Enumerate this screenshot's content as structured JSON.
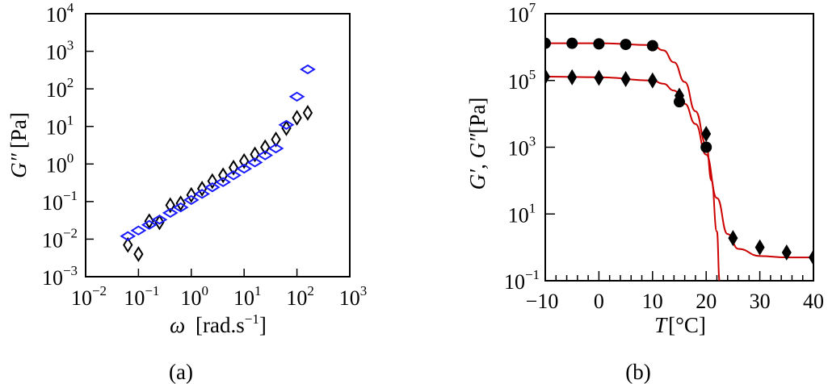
{
  "chart_data": [
    {
      "panel": "(a)",
      "type": "scatter",
      "title": "",
      "xlabel": "ω [rad.s⁻¹]",
      "ylabel": "G″ [Pa]",
      "xscale": "log",
      "yscale": "log",
      "xlim": [
        0.01,
        1000
      ],
      "ylim": [
        0.001,
        10000
      ],
      "x_ticks": [
        "10^-2",
        "10^-1",
        "10^0",
        "10^1",
        "10^2",
        "10^3"
      ],
      "y_ticks": [
        "10^-3",
        "10^-2",
        "10^-1",
        "10^0",
        "10^1",
        "10^2",
        "10^3",
        "10^4"
      ],
      "grid": false,
      "legend": "none",
      "series": [
        {
          "name": "black open diamonds",
          "marker": "open-diamond",
          "color": "#000000",
          "x": [
            0.063,
            0.1,
            0.16,
            0.25,
            0.4,
            0.63,
            1.0,
            1.6,
            2.5,
            4.0,
            6.3,
            10,
            16,
            25,
            40,
            63,
            100,
            160
          ],
          "y": [
            0.007,
            0.004,
            0.03,
            0.028,
            0.08,
            0.09,
            0.15,
            0.22,
            0.35,
            0.5,
            0.8,
            1.2,
            1.8,
            2.8,
            4.5,
            9,
            17,
            23
          ]
        },
        {
          "name": "blue open diamonds",
          "marker": "open-diamond",
          "color": "#1a1aff",
          "x": [
            0.063,
            0.1,
            0.16,
            0.25,
            0.4,
            0.63,
            1.0,
            1.6,
            2.5,
            4.0,
            6.3,
            10,
            16,
            25,
            40,
            63,
            100,
            160
          ],
          "y": [
            0.012,
            0.017,
            0.024,
            0.033,
            0.05,
            0.07,
            0.11,
            0.16,
            0.24,
            0.33,
            0.5,
            0.75,
            1.1,
            1.7,
            2.6,
            11,
            62,
            330
          ]
        }
      ]
    },
    {
      "panel": "(b)",
      "type": "scatter",
      "title": "",
      "xlabel": "T [°C]",
      "ylabel": "G′, G″ [Pa]",
      "xscale": "linear",
      "yscale": "log",
      "xlim": [
        -10,
        40
      ],
      "ylim": [
        0.1,
        10000000
      ],
      "x_ticks": [
        "−10",
        "0",
        "10",
        "20",
        "30",
        "40"
      ],
      "y_ticks": [
        "10^-1",
        "10^1",
        "10^3",
        "10^5",
        "10^7"
      ],
      "grid": false,
      "legend": "none",
      "series": [
        {
          "name": "G′ (filled circles)",
          "marker": "filled-circle",
          "color": "#000000",
          "x": [
            -10,
            -5,
            0,
            5,
            10,
            15,
            20
          ],
          "y": [
            1300000,
            1300000,
            1250000,
            1200000,
            1100000,
            23000,
            1000
          ]
        },
        {
          "name": "G″ (filled diamonds)",
          "marker": "filled-diamond",
          "color": "#000000",
          "x": [
            -10,
            -5,
            0,
            5,
            10,
            15,
            20,
            25,
            30,
            35,
            40
          ],
          "y": [
            130000,
            125000,
            120000,
            110000,
            100000,
            35000,
            2500,
            1.9,
            1.0,
            0.7,
            0.5
          ]
        },
        {
          "name": "G′ fit",
          "type": "line",
          "color": "#cc0000",
          "x": [
            -10,
            0,
            10,
            12,
            14,
            16,
            18,
            20,
            21,
            22,
            22.5
          ],
          "y": [
            1300000,
            1300000,
            1150000,
            800000,
            350000,
            90000,
            12000,
            1200,
            100,
            3,
            0.1
          ]
        },
        {
          "name": "G″ fit",
          "type": "line",
          "color": "#cc0000",
          "x": [
            -10,
            0,
            10,
            12,
            14,
            16,
            18,
            20,
            22,
            24,
            26,
            30,
            35,
            40
          ],
          "y": [
            130000,
            125000,
            100000,
            80000,
            50000,
            20000,
            5000,
            600,
            30,
            2.5,
            0.9,
            0.55,
            0.5,
            0.5
          ]
        }
      ]
    }
  ],
  "panels": {
    "a": {
      "label": "(a)",
      "ylabel_main": "G″",
      "ylabel_unit": "[Pa]",
      "xlabel_symbol": "ω",
      "xlabel_unit_pre": "[rad.s",
      "xlabel_sup": "−1",
      "xlabel_unit_post": "]",
      "x_ticks": [
        {
          "base": "10",
          "exp": "−2"
        },
        {
          "base": "10",
          "exp": "−1"
        },
        {
          "base": "10",
          "exp": "0"
        },
        {
          "base": "10",
          "exp": "1"
        },
        {
          "base": "10",
          "exp": "2"
        },
        {
          "base": "10",
          "exp": "3"
        }
      ],
      "y_ticks": [
        {
          "base": "10",
          "exp": "−3"
        },
        {
          "base": "10",
          "exp": "−2"
        },
        {
          "base": "10",
          "exp": "−1"
        },
        {
          "base": "10",
          "exp": "0"
        },
        {
          "base": "10",
          "exp": "1"
        },
        {
          "base": "10",
          "exp": "2"
        },
        {
          "base": "10",
          "exp": "3"
        },
        {
          "base": "10",
          "exp": "4"
        }
      ]
    },
    "b": {
      "label": "(b)",
      "ylabel_main": "G′, G″",
      "ylabel_unit": "[Pa]",
      "xlabel_symbol": "T",
      "xlabel_unit": "[°C]",
      "x_ticks": [
        "−10",
        "0",
        "10",
        "20",
        "30",
        "40"
      ],
      "y_ticks": [
        {
          "base": "10",
          "exp": "−1"
        },
        {
          "base": "10",
          "exp": "1"
        },
        {
          "base": "10",
          "exp": "3"
        },
        {
          "base": "10",
          "exp": "5"
        },
        {
          "base": "10",
          "exp": "7"
        }
      ]
    }
  },
  "colors": {
    "blue_series": "#1a1aff",
    "fit_line": "#cc0000",
    "axis": "#000000"
  }
}
